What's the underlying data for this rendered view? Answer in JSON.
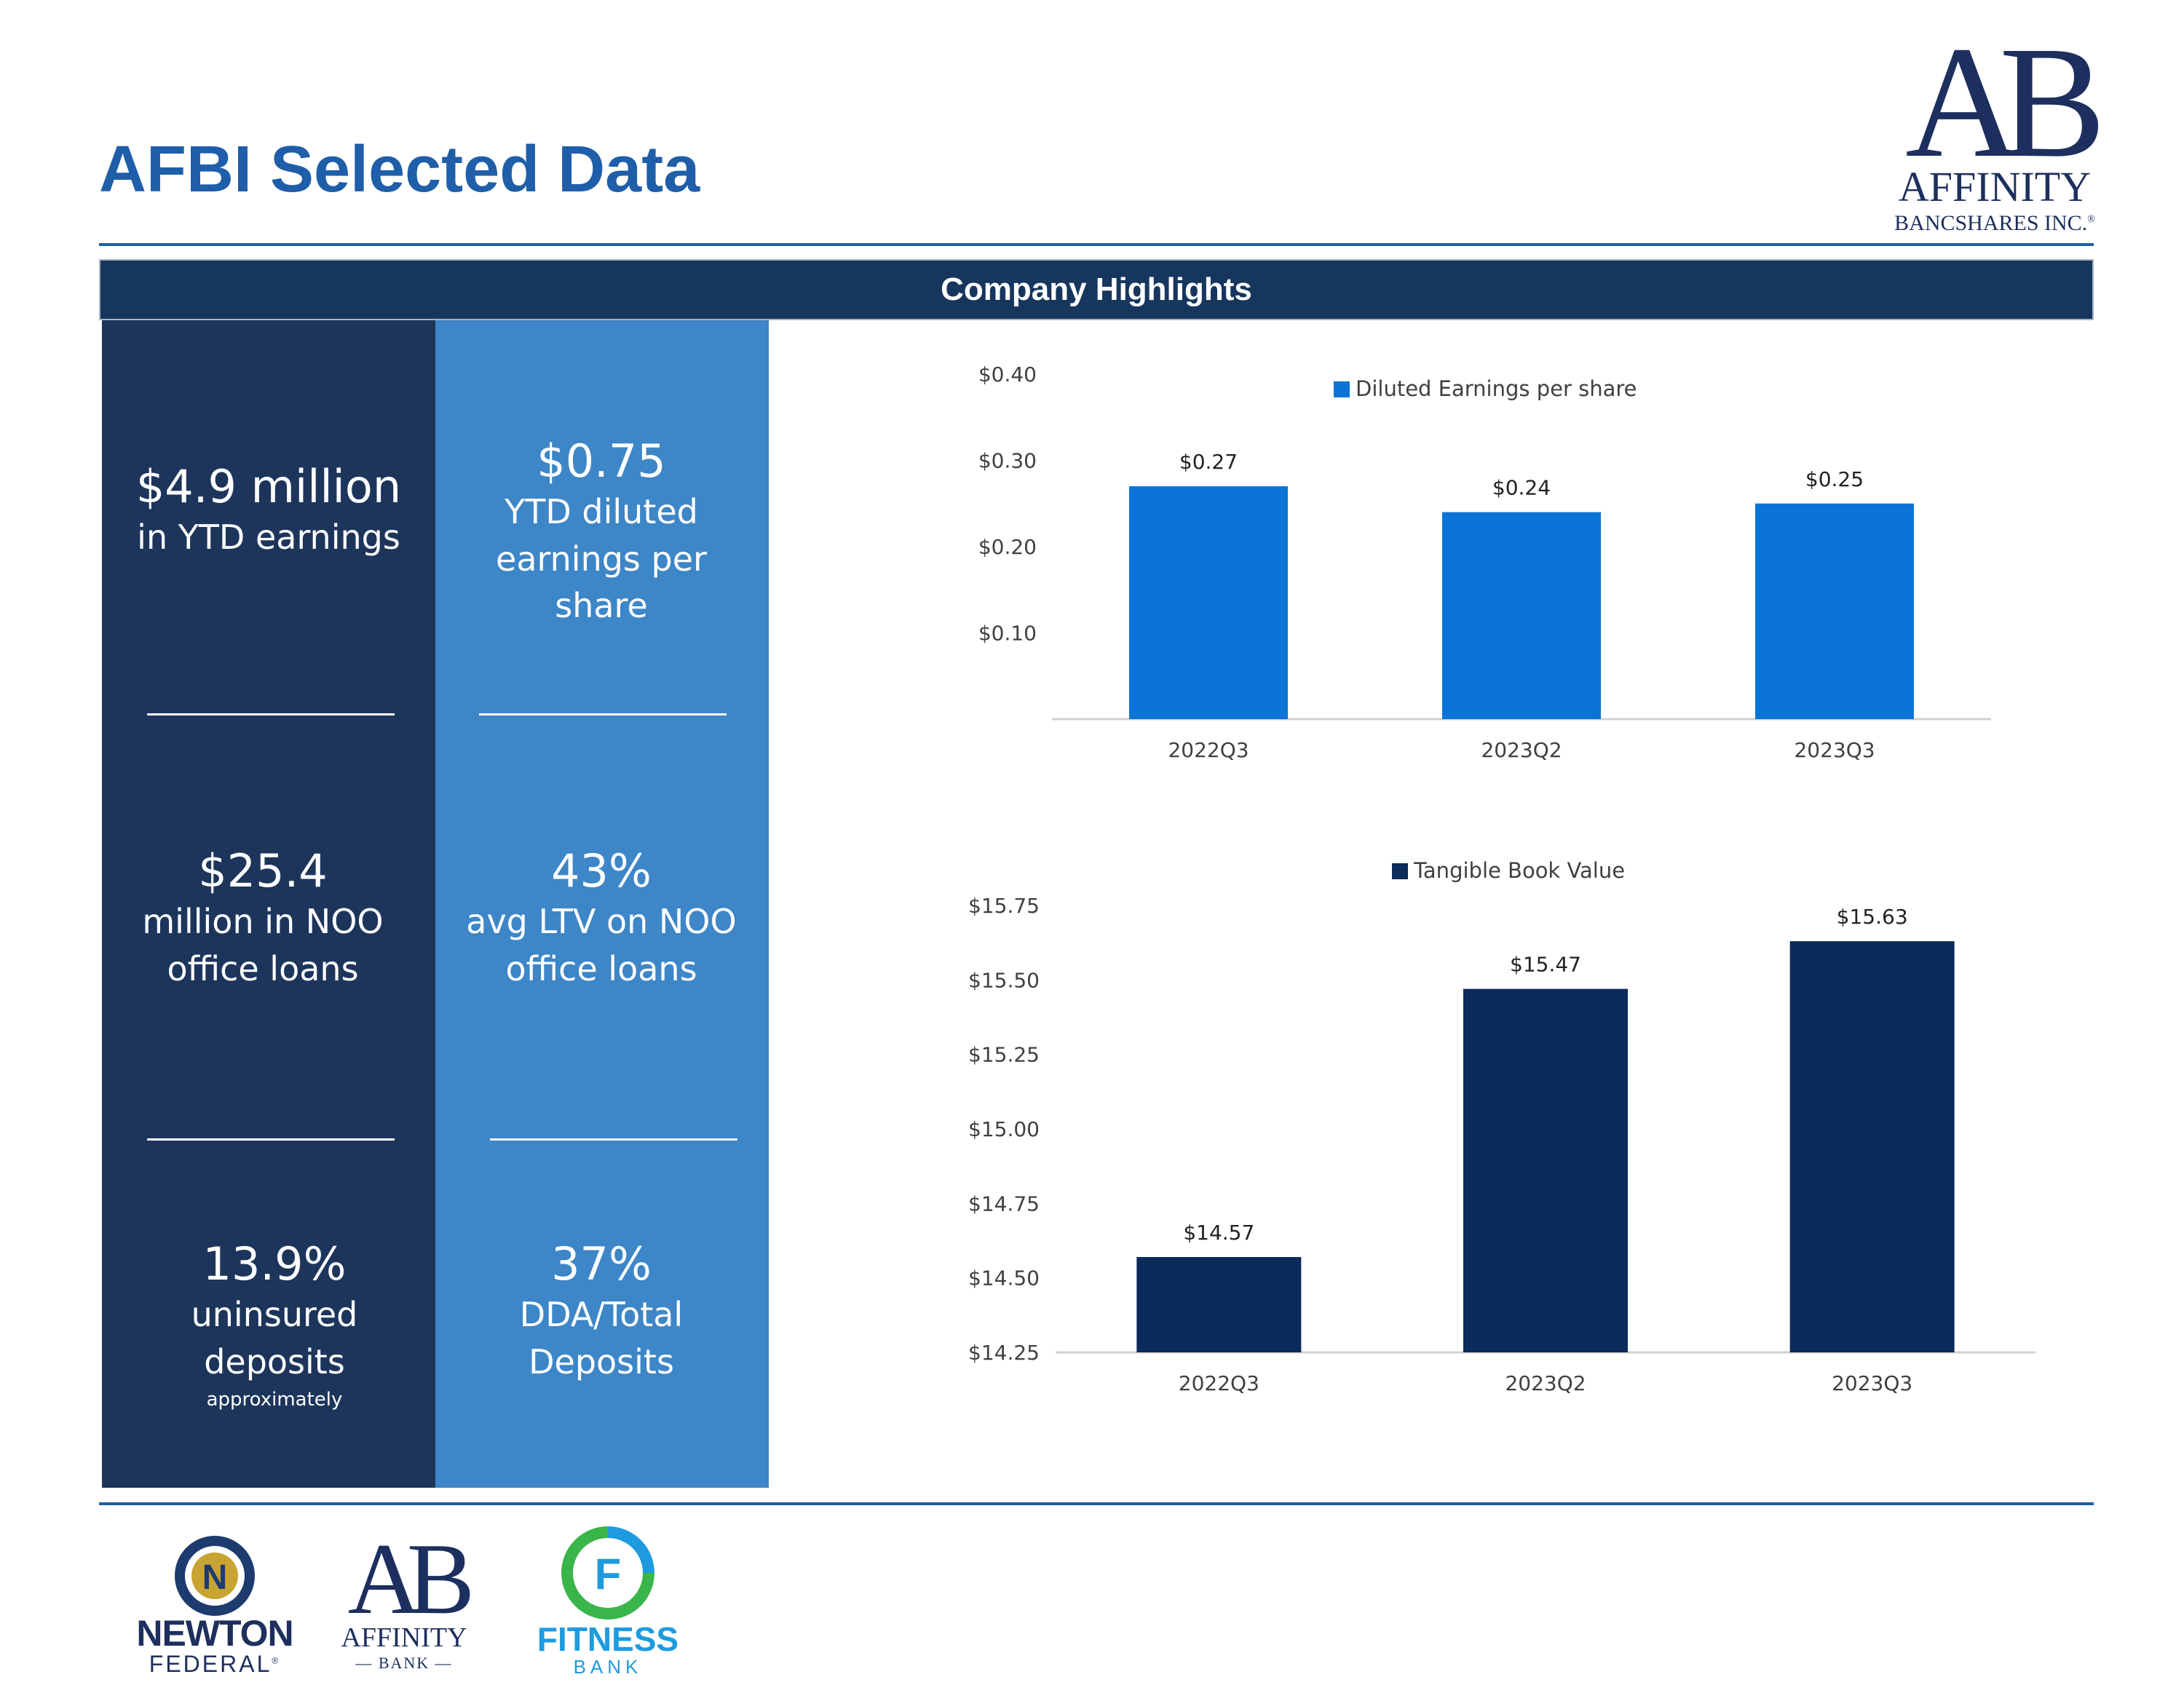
{
  "title": "AFBI Selected Data",
  "section_header": "Company Highlights",
  "brand": {
    "monogram": "AB",
    "name_line1": "AFFINITY",
    "name_line2": "BANCSHARES INC.",
    "mark": "®",
    "navy": "#1d2f5e",
    "blue": "#1f5ea8"
  },
  "highlights": {
    "left": [
      {
        "big": "$4.9 million",
        "lines": [
          "in YTD earnings"
        ],
        "note": ""
      },
      {
        "big": "$25.4",
        "lines": [
          "million in NOO",
          "office loans"
        ],
        "note": ""
      },
      {
        "big": "13.9%",
        "lines": [
          "uninsured",
          "deposits"
        ],
        "note": "approximately"
      }
    ],
    "right": [
      {
        "big": "$0.75",
        "lines": [
          "YTD diluted",
          "earnings per",
          "share"
        ]
      },
      {
        "big": "43%",
        "lines": [
          "avg LTV on NOO",
          "office loans"
        ]
      },
      {
        "big": "37%",
        "lines": [
          "DDA/Total",
          "Deposits"
        ]
      }
    ]
  },
  "chart_data": [
    {
      "type": "bar",
      "categories": [
        "2022Q3",
        "2023Q2",
        "2023Q3"
      ],
      "series": [
        {
          "name": "Diluted Earnings per share",
          "values": [
            0.27,
            0.24,
            0.25
          ],
          "color": "#0b74d6"
        }
      ],
      "data_labels": [
        "$0.27",
        "$0.24",
        "$0.25"
      ],
      "yticks": [
        "$0.10",
        "$0.20",
        "$0.30",
        "$0.40"
      ],
      "ytick_values": [
        0.1,
        0.2,
        0.3,
        0.4
      ],
      "ylim": [
        0,
        0.4
      ],
      "legend": "top-center",
      "grid": false
    },
    {
      "type": "bar",
      "categories": [
        "2022Q3",
        "2023Q2",
        "2023Q3"
      ],
      "series": [
        {
          "name": "Tangible Book Value",
          "values": [
            14.57,
            15.47,
            15.63
          ],
          "color": "#0c2a5a"
        }
      ],
      "data_labels": [
        "$14.57",
        "$15.47",
        "$15.63"
      ],
      "yticks": [
        "$14.25",
        "$14.50",
        "$14.75",
        "$15.00",
        "$15.25",
        "$15.50",
        "$15.75"
      ],
      "ytick_values": [
        14.25,
        14.5,
        14.75,
        15.0,
        15.25,
        15.5,
        15.75
      ],
      "ylim": [
        14.25,
        15.75
      ],
      "legend": "top-center",
      "grid": false
    }
  ],
  "footer_logos": [
    {
      "name": "NEWTON",
      "sub": "FEDERAL",
      "mark": "®",
      "initial": "N",
      "ring": "#1d3b6e",
      "fill": "#c8a532"
    },
    {
      "name": "AFFINITY",
      "sub": "— BANK —",
      "monogram": "AB"
    },
    {
      "name": "FITNESS",
      "sub": "BANK",
      "initial": "F",
      "green": "#3ab54a",
      "blue": "#1e9be0"
    }
  ]
}
